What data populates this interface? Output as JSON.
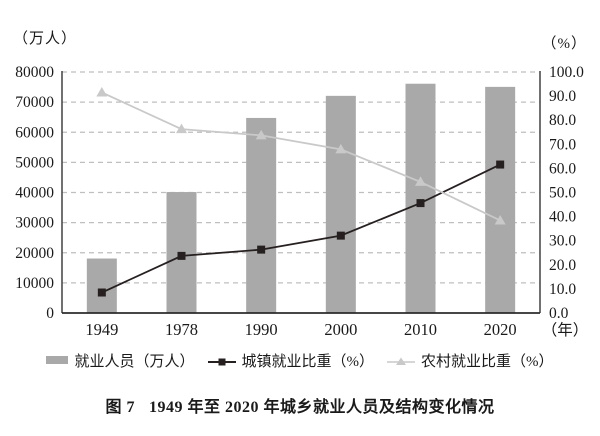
{
  "caption": {
    "prefix": "图 7",
    "text": "1949 年至 2020 年城乡就业人员及结构变化情况"
  },
  "legend": {
    "items": [
      {
        "label": "就业人员（万人）",
        "swatch": "bar"
      },
      {
        "label": "城镇就业比重（%）",
        "swatch": "square-line"
      },
      {
        "label": "农村就业比重（%）",
        "swatch": "triangle-line"
      }
    ]
  },
  "colors": {
    "bar": "#a9a9a9",
    "urban_line": "#272020",
    "rural_line": "#c9c9c9",
    "gridline": "#bfbfbf",
    "axis": "#4d4d4d",
    "bottom_axis": "#2b2b2b",
    "text": "#1a1a1a"
  },
  "chart_data": {
    "type": "bar",
    "subtype": "bar+line combo, dual y-axes, horizontal dashed grid",
    "categories": [
      "1949",
      "1978",
      "1990",
      "2000",
      "2010",
      "2020"
    ],
    "series": [
      {
        "name": "就业人员（万人）",
        "kind": "bar",
        "axis": "left",
        "values": [
          18082,
          40152,
          64749,
          72085,
          76105,
          75064
        ]
      },
      {
        "name": "城镇就业比重（%）",
        "kind": "line",
        "marker": "square",
        "axis": "right",
        "values": [
          8.5,
          23.7,
          26.3,
          32.1,
          45.6,
          61.6
        ]
      },
      {
        "name": "农村就业比重（%）",
        "kind": "line",
        "marker": "triangle",
        "axis": "right",
        "values": [
          91.5,
          76.3,
          73.7,
          67.9,
          54.4,
          38.4
        ]
      }
    ],
    "left_axis": {
      "unit": "（万人）",
      "min": 0,
      "max": 80000,
      "step": 10000,
      "tick_labels": [
        "0",
        "10000",
        "20000",
        "30000",
        "40000",
        "50000",
        "60000",
        "70000",
        "80000"
      ]
    },
    "right_axis": {
      "unit": "（%）",
      "min": 0,
      "max": 100,
      "step": 10,
      "tick_labels": [
        "0.0",
        "10.0",
        "20.0",
        "30.0",
        "40.0",
        "50.0",
        "60.0",
        "70.0",
        "80.0",
        "90.0",
        "100.0"
      ]
    },
    "x_axis_unit": "（年）",
    "grid": "horizontal dashed, at every left-axis step",
    "legend_position": "bottom",
    "title": "图 7 1949 年至 2020 年城乡就业人员及结构变化情况"
  }
}
